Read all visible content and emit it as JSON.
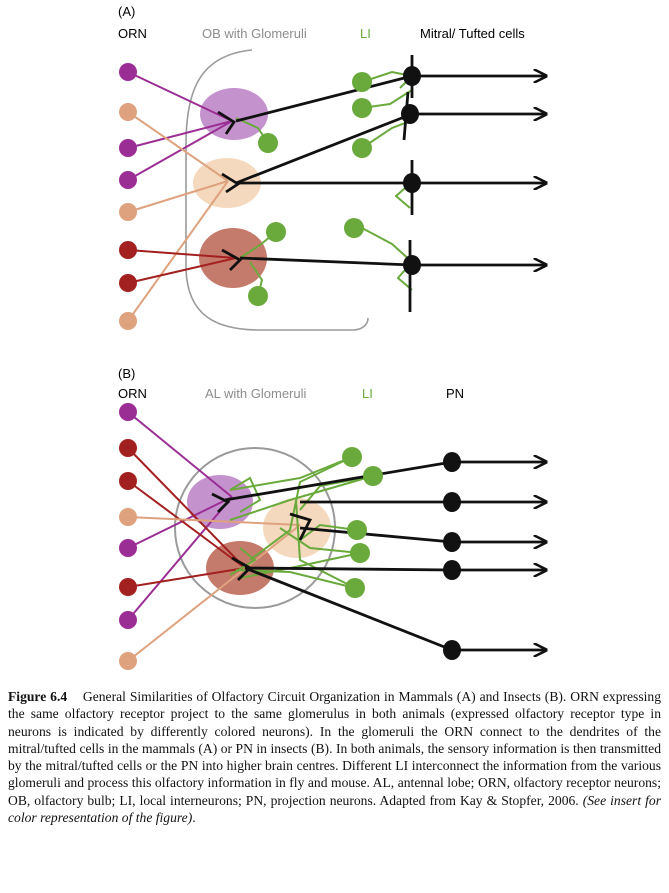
{
  "panel_a": {
    "letter": "(A)",
    "orn_label": "ORN",
    "bulb_label": "OB with Glomeruli",
    "li_label": "LI",
    "output_label": "Mitral/ Tufted cells"
  },
  "panel_b": {
    "letter": "(B)",
    "orn_label": "ORN",
    "bulb_label": "AL with Glomeruli",
    "li_label": "LI",
    "output_label": "PN"
  },
  "colors": {
    "purple": "#9b2e94",
    "tan": "#dea27e",
    "red": "#a32020",
    "green": "#6aa93c",
    "black": "#111111",
    "gray": "#9a9a9a"
  },
  "caption": {
    "figure_number": "Figure 6.4",
    "text": "General Similarities of Olfactory Circuit Organization in Mammals (A) and Insects (B). ORN expressing the same olfactory receptor project to the same glomerulus in both animals (expressed olfactory receptor type in neurons is indicated by differently colored neurons). In the glomeruli the ORN connect to the dendrites of the mitral/tufted cells in the mammals (A) or PN in insects (B). In both animals, the sensory information is then transmitted by the mitral/tufted cells or the PN into higher brain centres. Different LI interconnect the information from the various glomeruli and process this olfactory information in fly and mouse. AL, antennal lobe; ORN, olfactory receptor neurons; OB, olfactory bulb; LI, local interneurons; PN, projection neurons. Adapted from Kay & Stopfer, 2006.",
    "note": "(See insert for color representation of the figure)",
    "end": "."
  }
}
